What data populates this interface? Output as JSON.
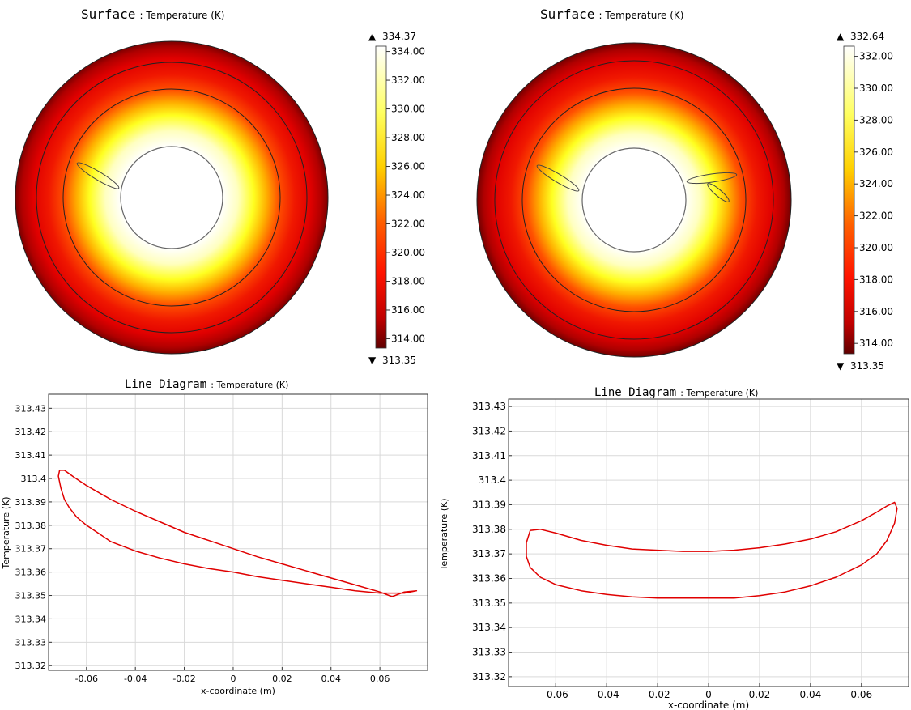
{
  "colors": {
    "hot": "#ffffff",
    "mid": "#ffff00",
    "warm": "#ff1800",
    "cold": "#5a0000",
    "curve": "#e00000",
    "grid": "#d9d9d9"
  },
  "surfaces": [
    {
      "title_prefix": "Surface",
      "title_suffix": ": Temperature (K)",
      "colorbar": {
        "max_label": "334.37",
        "min_label": "313.35",
        "max": 334.37,
        "min": 313.35,
        "ticks": [
          "334.00",
          "332.00",
          "330.00",
          "328.00",
          "326.00",
          "324.00",
          "322.00",
          "320.00",
          "318.00",
          "316.00",
          "314.00"
        ]
      },
      "fins": [
        "left"
      ]
    },
    {
      "title_prefix": "Surface",
      "title_suffix": ": Temperature (K)",
      "colorbar": {
        "max_label": "332.64",
        "min_label": "313.35",
        "max": 332.64,
        "min": 313.35,
        "ticks": [
          "332.00",
          "330.00",
          "328.00",
          "326.00",
          "324.00",
          "322.00",
          "320.00",
          "318.00",
          "316.00",
          "314.00"
        ]
      },
      "fins": [
        "left",
        "right"
      ]
    }
  ],
  "chart_data": [
    {
      "type": "line",
      "title_prefix": "Line Diagram",
      "title_suffix": ": Temperature (K)",
      "xlabel": "x-coordinate (m)",
      "ylabel": "Temperature (K)",
      "xlim": [
        -0.0755,
        0.0795
      ],
      "ylim": [
        313.318,
        313.436
      ],
      "x_ticks": [
        "-0.06",
        "-0.04",
        "-0.02",
        "0",
        "0.02",
        "0.04",
        "0.06"
      ],
      "x_tick_values": [
        -0.06,
        -0.04,
        -0.02,
        0,
        0.02,
        0.04,
        0.06
      ],
      "y_ticks": [
        "313.43",
        "313.42",
        "313.41",
        "313.4",
        "313.39",
        "313.38",
        "313.37",
        "313.36",
        "313.35",
        "313.34",
        "313.33",
        "313.32"
      ],
      "y_tick_values": [
        313.43,
        313.42,
        313.41,
        313.4,
        313.39,
        313.38,
        313.37,
        313.36,
        313.35,
        313.34,
        313.33,
        313.32
      ],
      "series": [
        {
          "x": [
            0.075,
            0.07,
            0.06,
            0.05,
            0.04,
            0.03,
            0.02,
            0.01,
            0,
            -0.01,
            -0.02,
            -0.03,
            -0.04,
            -0.05,
            -0.055,
            -0.06,
            -0.064,
            -0.067,
            -0.069,
            -0.0705,
            -0.0715,
            -0.071,
            -0.069,
            -0.065,
            -0.06,
            -0.05,
            -0.04,
            -0.03,
            -0.02,
            -0.01,
            0,
            0.01,
            0.02,
            0.03,
            0.04,
            0.05,
            0.06,
            0.065,
            0.07,
            0.075
          ],
          "y": [
            313.352,
            313.351,
            313.351,
            313.352,
            313.3535,
            313.355,
            313.3565,
            313.358,
            313.36,
            313.3615,
            313.3635,
            313.366,
            313.369,
            313.373,
            313.3765,
            313.38,
            313.3835,
            313.3875,
            313.391,
            313.396,
            313.401,
            313.4035,
            313.4035,
            313.4005,
            313.397,
            313.391,
            313.386,
            313.3815,
            313.377,
            313.3735,
            313.37,
            313.3665,
            313.3635,
            313.3605,
            313.3575,
            313.3545,
            313.3515,
            313.3495,
            313.3515,
            313.352
          ]
        }
      ]
    },
    {
      "type": "line",
      "title_prefix": "Line Diagram",
      "title_suffix": ": Temperature (K)",
      "xlabel": "x-coordinate (m)",
      "ylabel": "Temperature (K)",
      "xlim": [
        -0.0785,
        0.0785
      ],
      "ylim": [
        313.316,
        313.433
      ],
      "x_ticks": [
        "-0.06",
        "-0.04",
        "-0.02",
        "0",
        "0.02",
        "0.04",
        "0.06"
      ],
      "x_tick_values": [
        -0.06,
        -0.04,
        -0.02,
        0,
        0.02,
        0.04,
        0.06
      ],
      "y_ticks": [
        "313.43",
        "313.42",
        "313.41",
        "313.4",
        "313.39",
        "313.38",
        "313.37",
        "313.36",
        "313.35",
        "313.34",
        "313.33",
        "313.32"
      ],
      "y_tick_values": [
        313.43,
        313.42,
        313.41,
        313.4,
        313.39,
        313.38,
        313.37,
        313.36,
        313.35,
        313.34,
        313.33,
        313.32
      ],
      "series": [
        {
          "x": [
            -0.07,
            -0.066,
            -0.06,
            -0.05,
            -0.04,
            -0.03,
            -0.02,
            -0.01,
            0,
            0.01,
            0.02,
            0.03,
            0.04,
            0.05,
            0.06,
            0.066,
            0.07,
            0.073,
            0.074,
            0.073,
            0.07,
            0.066,
            0.06,
            0.05,
            0.04,
            0.03,
            0.02,
            0.01,
            0,
            -0.01,
            -0.02,
            -0.03,
            -0.04,
            -0.05,
            -0.06,
            -0.066,
            -0.07,
            -0.0715,
            -0.0715,
            -0.07
          ],
          "y": [
            313.3795,
            313.38,
            313.3785,
            313.3755,
            313.3735,
            313.372,
            313.3715,
            313.371,
            313.371,
            313.3715,
            313.3725,
            313.374,
            313.376,
            313.379,
            313.3835,
            313.387,
            313.3895,
            313.391,
            313.3885,
            313.3825,
            313.3755,
            313.37,
            313.3655,
            313.3605,
            313.357,
            313.3545,
            313.353,
            313.352,
            313.352,
            313.352,
            313.352,
            313.3525,
            313.3535,
            313.355,
            313.3575,
            313.3605,
            313.3645,
            313.369,
            313.3745,
            313.3795
          ]
        }
      ]
    }
  ]
}
